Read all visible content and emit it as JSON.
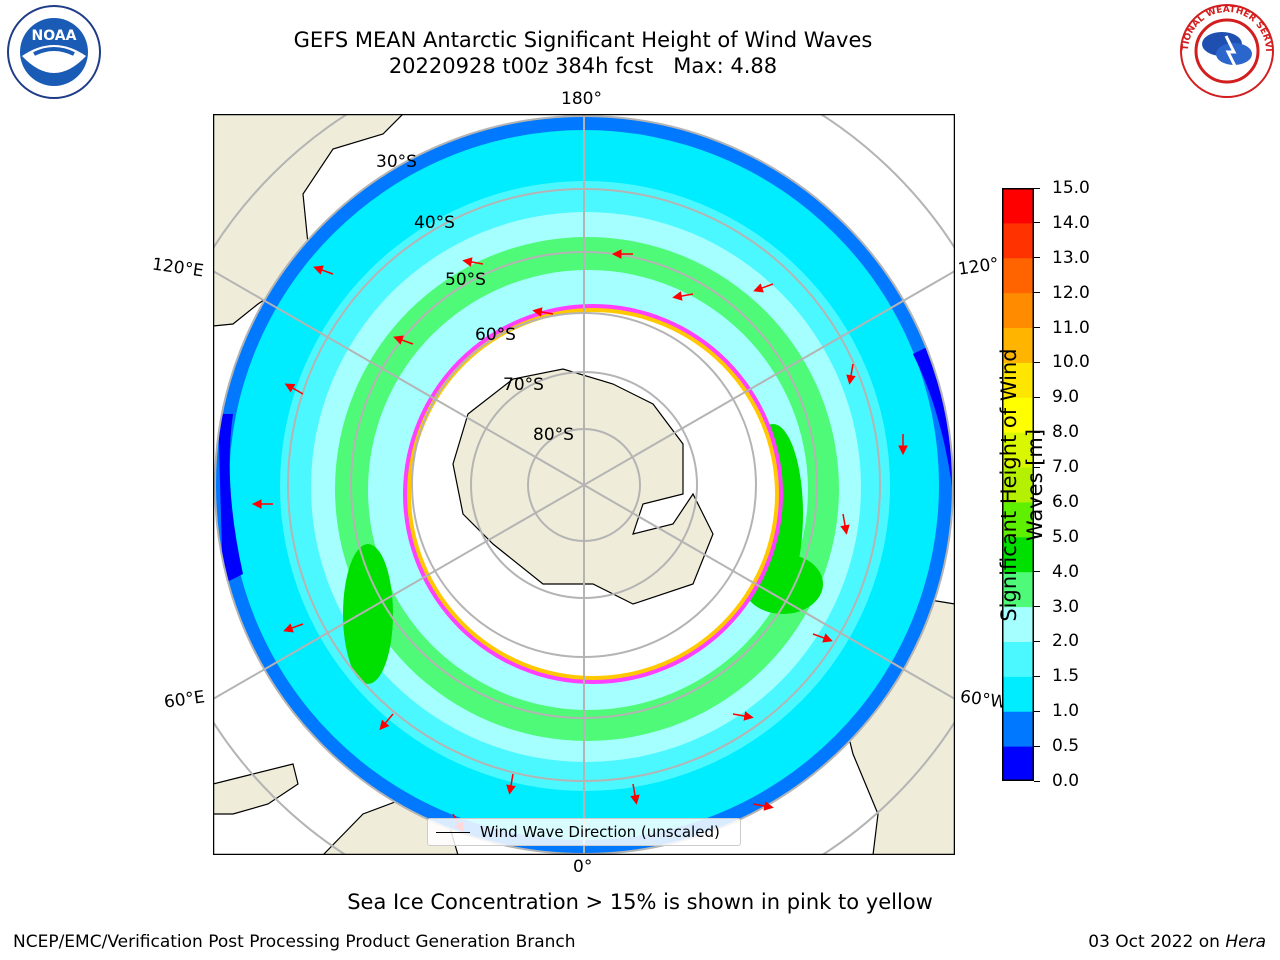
{
  "title": {
    "line1": "GEFS MEAN Antarctic Significant Height of Wind Waves",
    "line2": "20220928 t00z 384h fcst   Max: 4.88"
  },
  "logos": {
    "left": "NOAA",
    "right": "NATIONAL WEATHER SERVICE"
  },
  "map": {
    "projection": "south-polar-stereographic",
    "longitude_labels": [
      "180°",
      "120°E",
      "120°",
      "60°E",
      "60°W",
      "0°"
    ],
    "latitude_labels": [
      "30°S",
      "40°S",
      "50°S",
      "60°S",
      "70°S",
      "80°S"
    ],
    "legend_label": "Wind Wave Direction (unscaled)",
    "colors": {
      "land": "#efecd9",
      "ice_edge": "#ff40ff",
      "arrow": "#ff0000",
      "grid": "#b4b4b4"
    }
  },
  "colorbar": {
    "title": "Significant Height of Wind Waves [m]",
    "ticks": [
      "0.0",
      "0.5",
      "1.0",
      "1.5",
      "2.0",
      "3.0",
      "4.0",
      "5.0",
      "6.0",
      "7.0",
      "8.0",
      "9.0",
      "10.0",
      "11.0",
      "12.0",
      "13.0",
      "14.0",
      "15.0"
    ],
    "colors": [
      "#0000ff",
      "#0078ff",
      "#00ecff",
      "#4cf8ff",
      "#a5ffff",
      "#4ffa78",
      "#00e000",
      "#5ff000",
      "#b4f000",
      "#d9f700",
      "#ffff00",
      "#ffe600",
      "#ffb400",
      "#ff8c00",
      "#ff6400",
      "#ff3200",
      "#ff0000"
    ]
  },
  "caption": "Sea Ice Concentration > 15% is shown in pink to yellow",
  "footer": {
    "left": "NCEP/EMC/Verification Post Processing Product Generation Branch",
    "right_date": "03 Oct 2022 on",
    "right_host": "Hera"
  }
}
